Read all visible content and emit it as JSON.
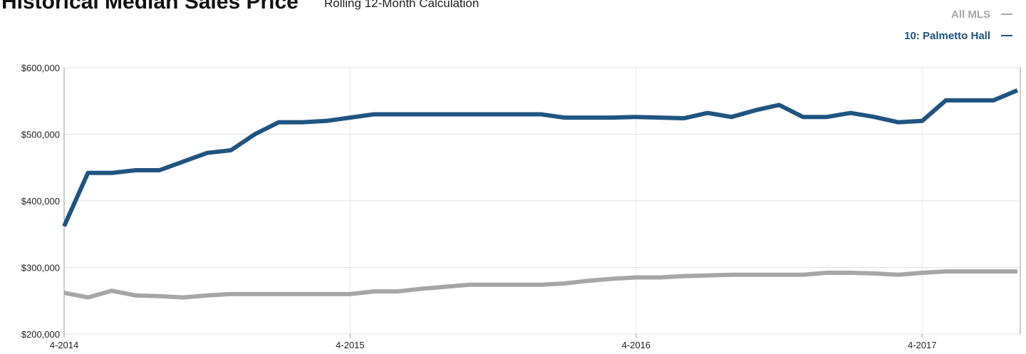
{
  "chart_data": {
    "type": "line",
    "title": "Historical Median Sales Price",
    "subtitle": "Rolling 12-Month Calculation",
    "categories": [
      "4-2014",
      null,
      null,
      null,
      null,
      null,
      null,
      null,
      null,
      null,
      null,
      null,
      "4-2015",
      null,
      null,
      null,
      null,
      null,
      null,
      null,
      null,
      null,
      null,
      null,
      "4-2016",
      null,
      null,
      null,
      null,
      null,
      null,
      null,
      null,
      null,
      null,
      null,
      "4-2017",
      null,
      null,
      null,
      null
    ],
    "series": [
      {
        "name": "All MLS",
        "color": "#a6a6a6",
        "values": [
          262,
          255,
          265,
          258,
          257,
          255,
          258,
          260,
          260,
          260,
          260,
          260,
          260,
          264,
          264,
          268,
          271,
          274,
          274,
          274,
          274,
          276,
          280,
          283,
          285,
          285,
          287,
          288,
          289,
          289,
          289,
          289,
          292,
          292,
          291,
          289,
          292,
          294,
          294,
          294,
          294
        ]
      },
      {
        "name": "10: Palmetto Hall",
        "color": "#1f5480",
        "values": [
          362,
          442,
          442,
          446,
          446,
          459,
          472,
          476,
          500,
          518,
          518,
          520,
          525,
          530,
          530,
          530,
          530,
          530,
          530,
          530,
          530,
          525,
          525,
          525,
          526,
          525,
          524,
          532,
          526,
          536,
          544,
          526,
          526,
          532,
          526,
          518,
          520,
          551,
          551,
          551,
          566
        ]
      }
    ],
    "ylim": [
      200,
      600
    ],
    "yticks": [
      {
        "value": 200,
        "label": "$200,000"
      },
      {
        "value": 300,
        "label": "$300,000"
      },
      {
        "value": 400,
        "label": "$400,000"
      },
      {
        "value": 500,
        "label": "$500,000"
      },
      {
        "value": 600,
        "label": "$600,000"
      }
    ],
    "grid": true,
    "legend": "top-right"
  }
}
